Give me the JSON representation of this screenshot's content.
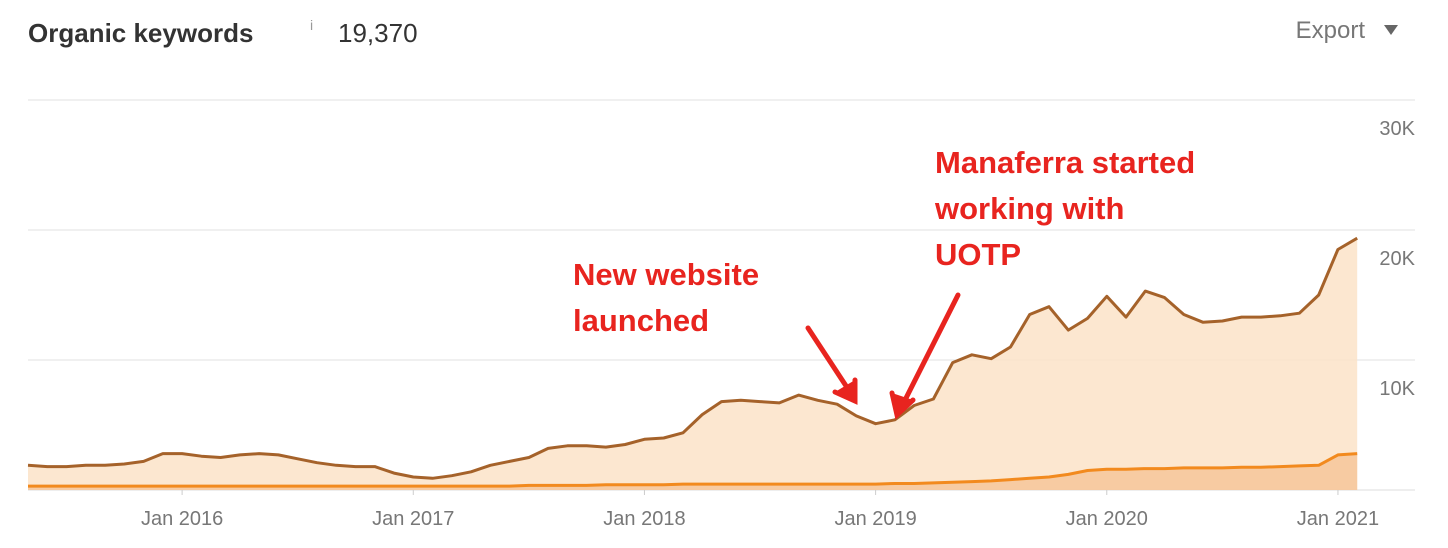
{
  "chart_data": {
    "type": "line",
    "title": "Organic keywords",
    "info_icon": "i",
    "headline_value": "19,370",
    "export_button": "Export",
    "x": [
      "2015-05",
      "2015-06",
      "2015-07",
      "2015-08",
      "2015-09",
      "2015-10",
      "2015-11",
      "2015-12",
      "2016-01",
      "2016-02",
      "2016-03",
      "2016-04",
      "2016-05",
      "2016-06",
      "2016-07",
      "2016-08",
      "2016-09",
      "2016-10",
      "2016-11",
      "2016-12",
      "2017-01",
      "2017-02",
      "2017-03",
      "2017-04",
      "2017-05",
      "2017-06",
      "2017-07",
      "2017-08",
      "2017-09",
      "2017-10",
      "2017-11",
      "2017-12",
      "2018-01",
      "2018-02",
      "2018-03",
      "2018-04",
      "2018-05",
      "2018-06",
      "2018-07",
      "2018-08",
      "2018-09",
      "2018-10",
      "2018-11",
      "2018-12",
      "2019-01",
      "2019-02",
      "2019-03",
      "2019-04",
      "2019-05",
      "2019-06",
      "2019-07",
      "2019-08",
      "2019-09",
      "2019-10",
      "2019-11",
      "2019-12",
      "2020-01",
      "2020-02",
      "2020-03",
      "2020-04",
      "2020-05",
      "2020-06",
      "2020-07",
      "2020-08",
      "2020-09",
      "2020-10",
      "2020-11",
      "2020-12",
      "2021-01",
      "2021-02"
    ],
    "series": [
      {
        "color": "#a5622a",
        "fill": "#fce3c8",
        "values": [
          1900,
          1800,
          1800,
          1900,
          1900,
          2000,
          2200,
          2800,
          2800,
          2600,
          2500,
          2700,
          2800,
          2700,
          2400,
          2100,
          1900,
          1800,
          1800,
          1300,
          1000,
          900,
          1100,
          1400,
          1900,
          2200,
          2500,
          3200,
          3400,
          3400,
          3300,
          3500,
          3900,
          4000,
          4400,
          5800,
          6800,
          6900,
          6800,
          6700,
          7300,
          6900,
          6600,
          5700,
          5100,
          5400,
          6500,
          7000,
          9800,
          10400,
          10100,
          11000,
          13500,
          14100,
          12300,
          13200,
          14900,
          13300,
          15300,
          14800,
          13500,
          12900,
          13000,
          13300,
          13300,
          13400,
          13600,
          15000,
          18500,
          19370
        ]
      },
      {
        "color": "#f28a1e",
        "fill": "#f6c59a",
        "values": [
          300,
          300,
          300,
          300,
          300,
          300,
          300,
          300,
          300,
          300,
          300,
          300,
          300,
          300,
          300,
          300,
          300,
          300,
          300,
          300,
          300,
          300,
          300,
          300,
          300,
          300,
          350,
          350,
          350,
          350,
          400,
          400,
          400,
          400,
          450,
          450,
          450,
          450,
          450,
          450,
          450,
          450,
          450,
          450,
          450,
          500,
          500,
          550,
          600,
          650,
          700,
          800,
          900,
          1000,
          1200,
          1500,
          1600,
          1600,
          1650,
          1650,
          1700,
          1700,
          1700,
          1750,
          1750,
          1800,
          1850,
          1900,
          2700,
          2800
        ]
      }
    ],
    "xlim": [
      "2015-05",
      "2021-05"
    ],
    "xticks": [
      {
        "value": "2016-01",
        "label": "Jan 2016"
      },
      {
        "value": "2017-01",
        "label": "Jan 2017"
      },
      {
        "value": "2018-01",
        "label": "Jan 2018"
      },
      {
        "value": "2019-01",
        "label": "Jan 2019"
      },
      {
        "value": "2020-01",
        "label": "Jan 2020"
      },
      {
        "value": "2021-01",
        "label": "Jan 2021"
      }
    ],
    "ylim": [
      0,
      30000
    ],
    "yticks": [
      {
        "value": 10000,
        "label": "10K"
      },
      {
        "value": 20000,
        "label": "20K"
      },
      {
        "value": 30000,
        "label": "30K"
      }
    ],
    "grid": true,
    "annotations": [
      {
        "lines": [
          "New website",
          "launched"
        ]
      },
      {
        "lines": [
          "Manaferra started",
          "working with",
          "UOTP"
        ]
      }
    ]
  }
}
